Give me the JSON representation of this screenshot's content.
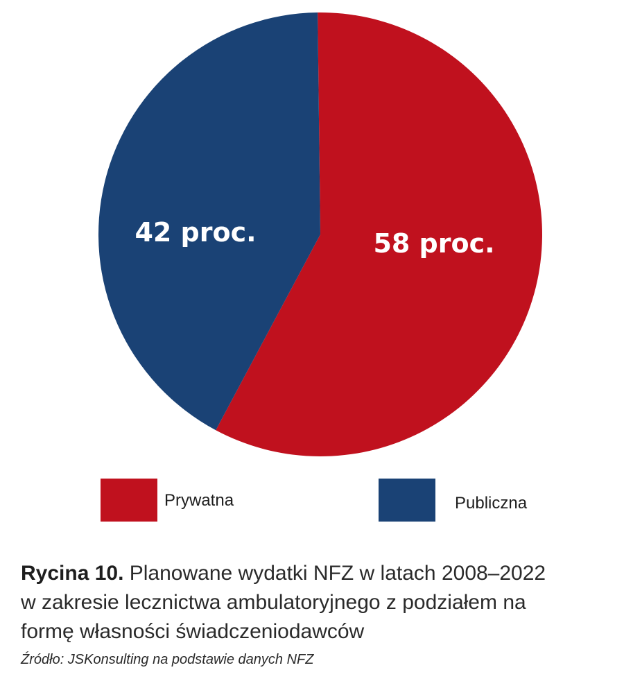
{
  "chart_data": {
    "type": "pie",
    "categories": [
      "Prywatna",
      "Publiczna"
    ],
    "values": [
      58,
      42
    ],
    "slice_labels": [
      "58 proc.",
      "42 proc."
    ],
    "colors": [
      "#c0111e",
      "#1a4275"
    ],
    "legend": {
      "placement": "bottom",
      "entries": [
        "Prywatna",
        "Publiczna"
      ]
    }
  },
  "caption": {
    "prefix": "Rycina 10.",
    "line1_text": " Planowane wydatki NFZ w latach 2008–2022",
    "line2": "w zakresie lecznictwa ambulatoryjnego z podziałem na",
    "line3": "formę własności świadczeniodawców"
  },
  "source": "Źródło: JSKonsulting na podstawie danych NFZ"
}
